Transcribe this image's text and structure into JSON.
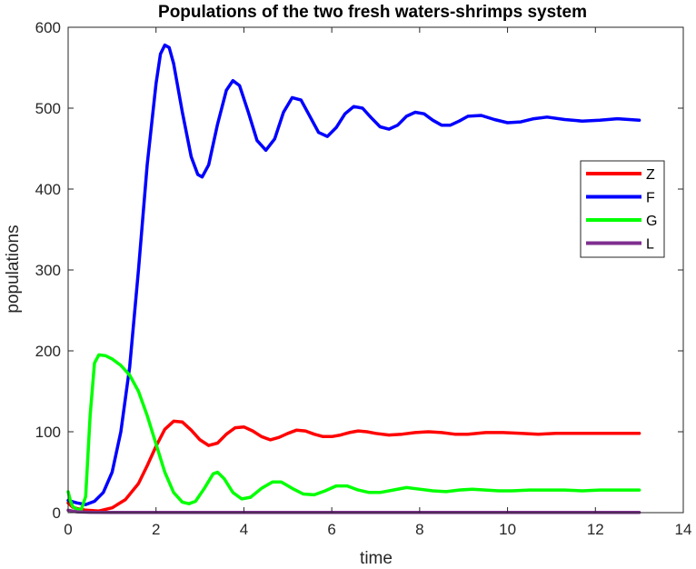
{
  "chart_data": {
    "type": "line",
    "title": "Populations of the two fresh waters-shrimps system",
    "xlabel": "time",
    "ylabel": "populations",
    "xlim": [
      0,
      14
    ],
    "ylim": [
      0,
      600
    ],
    "xticks": [
      0,
      2,
      4,
      6,
      8,
      10,
      12,
      14
    ],
    "yticks": [
      0,
      100,
      200,
      300,
      400,
      500,
      600
    ],
    "grid": false,
    "legend_position": "right",
    "series": [
      {
        "name": "Z",
        "color": "#ff0000",
        "points": [
          [
            0,
            12
          ],
          [
            0.1,
            7
          ],
          [
            0.2,
            5
          ],
          [
            0.4,
            3
          ],
          [
            0.7,
            2
          ],
          [
            1.0,
            6
          ],
          [
            1.3,
            16
          ],
          [
            1.6,
            36
          ],
          [
            1.8,
            58
          ],
          [
            2.0,
            82
          ],
          [
            2.2,
            103
          ],
          [
            2.4,
            113
          ],
          [
            2.6,
            112
          ],
          [
            2.8,
            102
          ],
          [
            3.0,
            90
          ],
          [
            3.2,
            83
          ],
          [
            3.4,
            86
          ],
          [
            3.6,
            97
          ],
          [
            3.8,
            105
          ],
          [
            4.0,
            106
          ],
          [
            4.2,
            101
          ],
          [
            4.4,
            94
          ],
          [
            4.6,
            90
          ],
          [
            4.8,
            93
          ],
          [
            5.0,
            98
          ],
          [
            5.2,
            102
          ],
          [
            5.4,
            101
          ],
          [
            5.6,
            97
          ],
          [
            5.8,
            94
          ],
          [
            6.0,
            94
          ],
          [
            6.2,
            96
          ],
          [
            6.4,
            99
          ],
          [
            6.6,
            101
          ],
          [
            6.8,
            100
          ],
          [
            7.0,
            98
          ],
          [
            7.3,
            96
          ],
          [
            7.6,
            97
          ],
          [
            7.9,
            99
          ],
          [
            8.2,
            100
          ],
          [
            8.5,
            99
          ],
          [
            8.8,
            97
          ],
          [
            9.1,
            97
          ],
          [
            9.5,
            99
          ],
          [
            9.9,
            99
          ],
          [
            10.3,
            98
          ],
          [
            10.7,
            97
          ],
          [
            11.1,
            98
          ],
          [
            11.5,
            98
          ],
          [
            12.0,
            98
          ],
          [
            12.5,
            98
          ],
          [
            13.0,
            98
          ]
        ]
      },
      {
        "name": "F",
        "color": "#0000ff",
        "points": [
          [
            0,
            15
          ],
          [
            0.2,
            12
          ],
          [
            0.4,
            10
          ],
          [
            0.6,
            14
          ],
          [
            0.8,
            25
          ],
          [
            1.0,
            50
          ],
          [
            1.2,
            100
          ],
          [
            1.4,
            180
          ],
          [
            1.6,
            300
          ],
          [
            1.8,
            430
          ],
          [
            2.0,
            530
          ],
          [
            2.1,
            567
          ],
          [
            2.2,
            578
          ],
          [
            2.3,
            575
          ],
          [
            2.4,
            555
          ],
          [
            2.6,
            495
          ],
          [
            2.8,
            440
          ],
          [
            2.95,
            418
          ],
          [
            3.05,
            415
          ],
          [
            3.2,
            430
          ],
          [
            3.4,
            480
          ],
          [
            3.6,
            522
          ],
          [
            3.75,
            534
          ],
          [
            3.9,
            528
          ],
          [
            4.1,
            495
          ],
          [
            4.3,
            460
          ],
          [
            4.5,
            448
          ],
          [
            4.7,
            462
          ],
          [
            4.9,
            495
          ],
          [
            5.1,
            513
          ],
          [
            5.3,
            510
          ],
          [
            5.5,
            490
          ],
          [
            5.7,
            470
          ],
          [
            5.9,
            465
          ],
          [
            6.1,
            476
          ],
          [
            6.3,
            493
          ],
          [
            6.5,
            502
          ],
          [
            6.7,
            500
          ],
          [
            6.9,
            488
          ],
          [
            7.1,
            477
          ],
          [
            7.3,
            474
          ],
          [
            7.5,
            479
          ],
          [
            7.7,
            490
          ],
          [
            7.9,
            495
          ],
          [
            8.1,
            493
          ],
          [
            8.3,
            485
          ],
          [
            8.5,
            479
          ],
          [
            8.7,
            479
          ],
          [
            8.9,
            484
          ],
          [
            9.1,
            490
          ],
          [
            9.4,
            491
          ],
          [
            9.7,
            486
          ],
          [
            10.0,
            482
          ],
          [
            10.3,
            483
          ],
          [
            10.6,
            487
          ],
          [
            10.9,
            489
          ],
          [
            11.3,
            486
          ],
          [
            11.7,
            484
          ],
          [
            12.1,
            485
          ],
          [
            12.5,
            487
          ],
          [
            13.0,
            485
          ]
        ]
      },
      {
        "name": "G",
        "color": "#00ff00",
        "points": [
          [
            0,
            26
          ],
          [
            0.05,
            15
          ],
          [
            0.1,
            8
          ],
          [
            0.2,
            4
          ],
          [
            0.3,
            4
          ],
          [
            0.4,
            20
          ],
          [
            0.5,
            120
          ],
          [
            0.6,
            185
          ],
          [
            0.7,
            195
          ],
          [
            0.85,
            194
          ],
          [
            1.0,
            190
          ],
          [
            1.2,
            182
          ],
          [
            1.4,
            170
          ],
          [
            1.6,
            150
          ],
          [
            1.8,
            120
          ],
          [
            2.0,
            85
          ],
          [
            2.2,
            50
          ],
          [
            2.4,
            25
          ],
          [
            2.6,
            13
          ],
          [
            2.75,
            11
          ],
          [
            2.9,
            14
          ],
          [
            3.1,
            30
          ],
          [
            3.3,
            48
          ],
          [
            3.4,
            50
          ],
          [
            3.55,
            42
          ],
          [
            3.75,
            25
          ],
          [
            3.95,
            17
          ],
          [
            4.15,
            19
          ],
          [
            4.4,
            30
          ],
          [
            4.65,
            38
          ],
          [
            4.85,
            38
          ],
          [
            5.1,
            30
          ],
          [
            5.35,
            23
          ],
          [
            5.6,
            22
          ],
          [
            5.85,
            27
          ],
          [
            6.1,
            33
          ],
          [
            6.35,
            33
          ],
          [
            6.6,
            28
          ],
          [
            6.85,
            25
          ],
          [
            7.1,
            25
          ],
          [
            7.4,
            28
          ],
          [
            7.7,
            31
          ],
          [
            8.0,
            29
          ],
          [
            8.3,
            27
          ],
          [
            8.6,
            26
          ],
          [
            8.9,
            28
          ],
          [
            9.2,
            29
          ],
          [
            9.5,
            28
          ],
          [
            9.8,
            27
          ],
          [
            10.1,
            27
          ],
          [
            10.5,
            28
          ],
          [
            10.9,
            28
          ],
          [
            11.3,
            28
          ],
          [
            11.7,
            27
          ],
          [
            12.1,
            28
          ],
          [
            12.5,
            28
          ],
          [
            13.0,
            28
          ]
        ]
      },
      {
        "name": "L",
        "color": "#7e2f8e",
        "points": [
          [
            0,
            3
          ],
          [
            0.2,
            1
          ],
          [
            0.5,
            0.5
          ],
          [
            1,
            0.3
          ],
          [
            2,
            0.2
          ],
          [
            4,
            0.2
          ],
          [
            6,
            0.2
          ],
          [
            8,
            0.2
          ],
          [
            10,
            0.2
          ],
          [
            12,
            0.2
          ],
          [
            13,
            0.2
          ]
        ]
      }
    ]
  }
}
